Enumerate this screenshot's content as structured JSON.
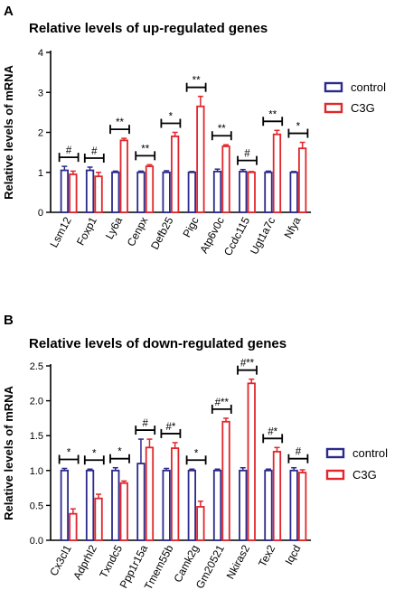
{
  "colors": {
    "control": "#2a2a8c",
    "c3g": "#e2262b",
    "axis": "#000000"
  },
  "chart_data": [
    {
      "panel_label": "A",
      "type": "bar",
      "title": "Relative levels of up-regulated genes",
      "xlabel": "",
      "ylabel": "Relative levels of mRNA",
      "ylim": [
        0,
        4
      ],
      "yticks": [
        "0",
        "1",
        "2",
        "3",
        "4"
      ],
      "legend_position": "top-right",
      "categories": [
        "Lsm12",
        "Foxp1",
        "Ly6a",
        "Cenpx",
        "Defb25",
        "Pigc",
        "Atp6v0c",
        "Ccdc115",
        "Ugt1a7c",
        "Nfya"
      ],
      "series": [
        {
          "name": "control",
          "values": [
            1.05,
            1.05,
            1.0,
            1.0,
            1.0,
            1.0,
            1.02,
            1.02,
            1.0,
            1.0
          ],
          "errors": [
            0.1,
            0.08,
            0.03,
            0.03,
            0.04,
            0.02,
            0.06,
            0.05,
            0.03,
            0.02
          ]
        },
        {
          "name": "C3G",
          "values": [
            0.95,
            0.9,
            1.8,
            1.15,
            1.9,
            2.65,
            1.65,
            1.0,
            1.95,
            1.6
          ],
          "errors": [
            0.08,
            0.1,
            0.05,
            0.04,
            0.1,
            0.25,
            0.04,
            0.02,
            0.1,
            0.15
          ]
        }
      ],
      "significance": [
        "#",
        "#",
        "**",
        "**",
        "*",
        "**",
        "**",
        "#",
        "**",
        "*"
      ]
    },
    {
      "panel_label": "B",
      "type": "bar",
      "title": "Relative levels of down-regulated genes",
      "xlabel": "",
      "ylabel": "Relative levels of mRNA",
      "ylim": [
        0,
        2.5
      ],
      "yticks": [
        "0.0",
        "0.5",
        "1.0",
        "1.5",
        "2.0",
        "2.5"
      ],
      "legend_position": "top-right",
      "categories": [
        "Cx3cl1",
        "Adprhl2",
        "Txndc5",
        "Ppp1r15a",
        "Tmem55b",
        "Camk2g",
        "Gm20521",
        "Nkiras2",
        "Tex2",
        "Iqcd"
      ],
      "series": [
        {
          "name": "control",
          "values": [
            1.0,
            1.0,
            1.0,
            1.1,
            1.0,
            1.0,
            1.0,
            1.0,
            1.0,
            1.0
          ],
          "errors": [
            0.03,
            0.02,
            0.04,
            0.35,
            0.03,
            0.02,
            0.02,
            0.04,
            0.02,
            0.04
          ]
        },
        {
          "name": "C3G",
          "values": [
            0.38,
            0.6,
            0.82,
            1.33,
            1.32,
            0.48,
            1.7,
            2.25,
            1.27,
            0.97
          ],
          "errors": [
            0.07,
            0.06,
            0.03,
            0.12,
            0.08,
            0.08,
            0.05,
            0.06,
            0.06,
            0.04
          ]
        }
      ],
      "significance": [
        "*",
        "*",
        "*",
        "#",
        "#*",
        "*",
        "#**",
        "#**",
        "#*",
        "#"
      ]
    }
  ]
}
